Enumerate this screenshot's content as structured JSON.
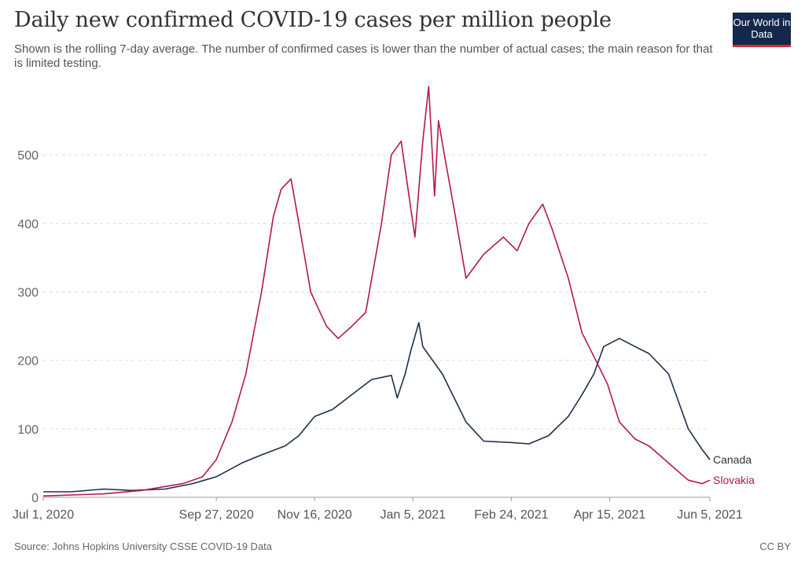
{
  "header": {
    "title": "Daily new confirmed COVID-19 cases per million people",
    "subtitle": "Shown is the rolling 7-day average. The number of confirmed cases is lower than the number of actual cases; the main reason for that is limited testing.",
    "logo": "Our World in Data"
  },
  "footer": {
    "source": "Source: Johns Hopkins University CSSE COVID-19 Data",
    "license": "CC BY"
  },
  "chart_data": {
    "type": "line",
    "title": "Daily new confirmed COVID-19 cases per million people",
    "xlabel": "",
    "ylabel": "",
    "xlim": [
      "2020-07-01",
      "2021-06-05"
    ],
    "ylim": [
      0,
      600
    ],
    "y_ticks": [
      0,
      100,
      200,
      300,
      400,
      500
    ],
    "x_ticks": [
      "2020-07-01",
      "2020-09-27",
      "2020-11-16",
      "2021-01-05",
      "2021-02-24",
      "2021-04-15",
      "2021-06-05"
    ],
    "x_tick_labels": [
      "Jul 1, 2020",
      "Sep 27, 2020",
      "Nov 16, 2020",
      "Jan 5, 2021",
      "Feb 24, 2021",
      "Apr 15, 2021",
      "Jun 5, 2021"
    ],
    "grid": "horizontal-dashed",
    "legend": "end-labels",
    "series": [
      {
        "name": "Canada",
        "color": "#1d2f4d",
        "points": [
          [
            "2020-07-01",
            8
          ],
          [
            "2020-07-15",
            8
          ],
          [
            "2020-08-01",
            12
          ],
          [
            "2020-08-15",
            10
          ],
          [
            "2020-09-01",
            12
          ],
          [
            "2020-09-15",
            20
          ],
          [
            "2020-09-27",
            30
          ],
          [
            "2020-10-10",
            50
          ],
          [
            "2020-10-20",
            62
          ],
          [
            "2020-11-01",
            75
          ],
          [
            "2020-11-08",
            90
          ],
          [
            "2020-11-16",
            118
          ],
          [
            "2020-11-25",
            128
          ],
          [
            "2020-12-05",
            150
          ],
          [
            "2020-12-15",
            172
          ],
          [
            "2020-12-25",
            178
          ],
          [
            "2020-12-28",
            145
          ],
          [
            "2021-01-01",
            180
          ],
          [
            "2021-01-04",
            215
          ],
          [
            "2021-01-08",
            255
          ],
          [
            "2021-01-10",
            220
          ],
          [
            "2021-01-20",
            180
          ],
          [
            "2021-02-01",
            110
          ],
          [
            "2021-02-10",
            82
          ],
          [
            "2021-02-24",
            80
          ],
          [
            "2021-03-05",
            78
          ],
          [
            "2021-03-15",
            90
          ],
          [
            "2021-03-25",
            118
          ],
          [
            "2021-04-01",
            150
          ],
          [
            "2021-04-07",
            180
          ],
          [
            "2021-04-12",
            220
          ],
          [
            "2021-04-20",
            232
          ],
          [
            "2021-04-28",
            220
          ],
          [
            "2021-05-05",
            210
          ],
          [
            "2021-05-15",
            180
          ],
          [
            "2021-05-25",
            100
          ],
          [
            "2021-06-01",
            70
          ],
          [
            "2021-06-05",
            55
          ]
        ]
      },
      {
        "name": "Slovakia",
        "color": "#b5174f",
        "points": [
          [
            "2020-07-01",
            2
          ],
          [
            "2020-08-01",
            5
          ],
          [
            "2020-08-20",
            10
          ],
          [
            "2020-09-10",
            20
          ],
          [
            "2020-09-20",
            30
          ],
          [
            "2020-09-27",
            55
          ],
          [
            "2020-10-05",
            110
          ],
          [
            "2020-10-12",
            180
          ],
          [
            "2020-10-20",
            300
          ],
          [
            "2020-10-26",
            410
          ],
          [
            "2020-10-30",
            450
          ],
          [
            "2020-11-04",
            465
          ],
          [
            "2020-11-08",
            400
          ],
          [
            "2020-11-14",
            300
          ],
          [
            "2020-11-22",
            250
          ],
          [
            "2020-11-28",
            232
          ],
          [
            "2020-12-05",
            250
          ],
          [
            "2020-12-12",
            270
          ],
          [
            "2020-12-20",
            400
          ],
          [
            "2020-12-25",
            500
          ],
          [
            "2020-12-30",
            520
          ],
          [
            "2021-01-03",
            440
          ],
          [
            "2021-01-06",
            380
          ],
          [
            "2021-01-10",
            520
          ],
          [
            "2021-01-13",
            600
          ],
          [
            "2021-01-16",
            440
          ],
          [
            "2021-01-18",
            550
          ],
          [
            "2021-01-21",
            500
          ],
          [
            "2021-01-26",
            420
          ],
          [
            "2021-02-01",
            320
          ],
          [
            "2021-02-10",
            355
          ],
          [
            "2021-02-20",
            380
          ],
          [
            "2021-02-27",
            360
          ],
          [
            "2021-03-05",
            400
          ],
          [
            "2021-03-12",
            428
          ],
          [
            "2021-03-17",
            390
          ],
          [
            "2021-03-25",
            320
          ],
          [
            "2021-04-01",
            240
          ],
          [
            "2021-04-08",
            200
          ],
          [
            "2021-04-14",
            165
          ],
          [
            "2021-04-20",
            110
          ],
          [
            "2021-04-28",
            85
          ],
          [
            "2021-05-05",
            75
          ],
          [
            "2021-05-15",
            50
          ],
          [
            "2021-05-25",
            25
          ],
          [
            "2021-06-01",
            20
          ],
          [
            "2021-06-05",
            25
          ]
        ]
      }
    ]
  }
}
